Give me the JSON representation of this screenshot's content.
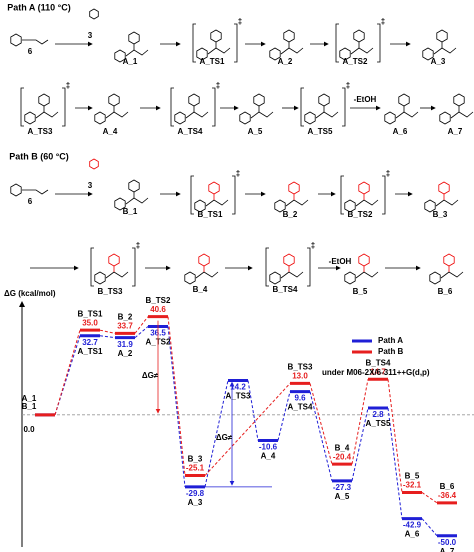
{
  "scheme": {
    "ts_mark": "‡",
    "path_a": {
      "title": "Path A (110 °C)",
      "reactant": "6",
      "reagent": "3",
      "byproduct": "-EtOH",
      "species": [
        "A_1",
        "A_TS1",
        "A_2",
        "A_TS2",
        "A_3",
        "A_TS3",
        "A_4",
        "A_TS4",
        "A_5",
        "A_TS5",
        "A_6",
        "A_7"
      ]
    },
    "path_b": {
      "title": "Path B (60 °C)",
      "reactant": "6",
      "reagent": "3",
      "byproduct": "-EtOH",
      "species": [
        "B_1",
        "B_TS1",
        "B_2",
        "B_TS2",
        "B_3",
        "B_TS3",
        "B_4",
        "B_TS4",
        "B_5",
        "B_6"
      ]
    }
  },
  "chart_data": {
    "type": "energy-profile",
    "y_label": "ΔG (kcal/mol)",
    "note": "under M06-2X/6-311++G(d,p)",
    "annotations": [
      "ΔG≠",
      "ΔG≠"
    ],
    "ylim": [
      -53,
      45
    ],
    "series": [
      {
        "name": "Path A",
        "color": "#1f1fd6",
        "labels": [
          "A_1",
          "A_TS1",
          "A_2",
          "A_TS2",
          "A_3",
          "A_TS3",
          "A_4",
          "A_TS4",
          "A_5",
          "A_TS5",
          "A_6",
          "A_7"
        ],
        "values": [
          0,
          32.7,
          31.9,
          36.5,
          -29.8,
          14.2,
          -10.6,
          9.6,
          -27.3,
          2.8,
          -42.9,
          -50
        ],
        "value_labels": [
          null,
          "32.7",
          "31.9",
          "36.5",
          "-29.8",
          "14.2",
          "-10.6",
          "9.6",
          "-27.3",
          "2.8",
          "-42.9",
          "-50.0"
        ]
      },
      {
        "name": "Path B",
        "color": "#e61e1e",
        "labels": [
          "B_1",
          "B_TS1",
          "B_2",
          "B_TS2",
          "B_3",
          "B_TS3",
          "B_4",
          "B_TS4",
          "B_5",
          "B_6"
        ],
        "values": [
          0,
          35,
          33.7,
          40.6,
          -25.1,
          13,
          -20.4,
          14.7,
          -32.1,
          -36.4
        ],
        "value_labels": [
          "0.0",
          "35.0",
          "33.7",
          "40.6",
          "-25.1",
          "13.0",
          "-20.4",
          "14.7",
          "-32.1",
          "-36.4"
        ]
      }
    ]
  }
}
